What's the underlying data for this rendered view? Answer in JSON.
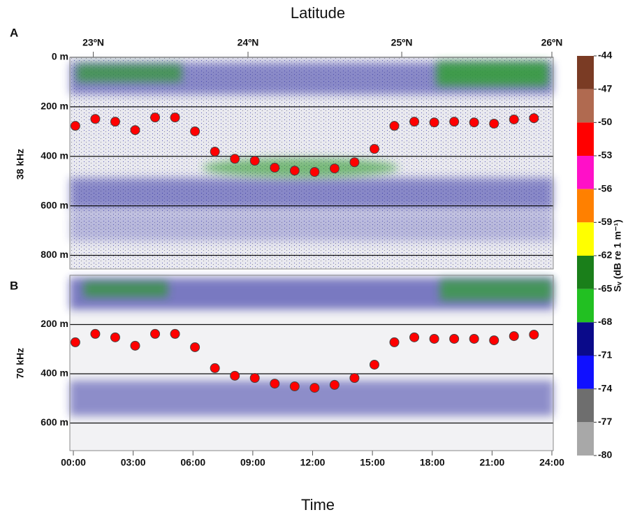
{
  "figure": {
    "top_axis_label": "Latitude",
    "x_label": "Time"
  },
  "colorbar": {
    "label": "Sᵥ (dB re 1 m⁻¹)",
    "ticks": [
      -44,
      -47,
      -50,
      -53,
      -56,
      -59,
      -62,
      -65,
      -68,
      -71,
      -74,
      -77,
      -80
    ],
    "colors": [
      "#7a3b24",
      "#b06a50",
      "#ff0000",
      "#ff10c8",
      "#ff8000",
      "#ffff00",
      "#1a7f1a",
      "#22c022",
      "#0a0a8a",
      "#1010ff",
      "#6e6e6e",
      "#a8a8a8"
    ]
  },
  "chart_data": [
    {
      "type": "scatter",
      "panel_label": "A",
      "y_label": "38 kHz",
      "color": "#ff0000",
      "x": [
        0.1,
        1.1,
        2.1,
        3.1,
        4.1,
        5.1,
        6.1,
        7.1,
        8.1,
        9.1,
        10.1,
        11.1,
        12.1,
        13.1,
        14.1,
        15.1,
        16.1,
        17.1,
        18.1,
        19.1,
        20.1,
        21.1,
        22.1,
        23.1
      ],
      "values": [
        277,
        249,
        260,
        294,
        243,
        243,
        299,
        381,
        410,
        418,
        446,
        458,
        463,
        449,
        424,
        370,
        277,
        260,
        263,
        260,
        263,
        268,
        251,
        246
      ],
      "xlim": [
        0,
        24
      ],
      "ylim": [
        0,
        855
      ],
      "y_inverted": true,
      "grid": true,
      "yticks": [
        {
          "value": 0,
          "label": "0 m"
        },
        {
          "value": 200,
          "label": "200 m"
        },
        {
          "value": 400,
          "label": "400 m"
        },
        {
          "value": 600,
          "label": "600 m"
        },
        {
          "value": 800,
          "label": "800 m"
        }
      ],
      "top_ticks": [
        {
          "value": 1.0,
          "label": "23ºN"
        },
        {
          "value": 8.76,
          "label": "24ºN"
        },
        {
          "value": 16.47,
          "label": "25ºN"
        },
        {
          "value": 24,
          "label": "26ºN"
        }
      ]
    },
    {
      "type": "scatter",
      "panel_label": "B",
      "y_label": "70 kHz",
      "color": "#ff0000",
      "x": [
        0.1,
        1.1,
        2.1,
        3.1,
        4.1,
        5.1,
        6.1,
        7.1,
        8.1,
        9.1,
        10.1,
        11.1,
        12.1,
        13.1,
        14.1,
        15.1,
        16.1,
        17.1,
        18.1,
        19.1,
        20.1,
        21.1,
        22.1,
        23.1
      ],
      "values": [
        272,
        238,
        252,
        286,
        238,
        238,
        292,
        377,
        408,
        417,
        440,
        451,
        457,
        445,
        417,
        363,
        272,
        252,
        258,
        258,
        258,
        264,
        247,
        241
      ],
      "xlim": [
        0,
        24
      ],
      "ylim": [
        0,
        712
      ],
      "y_inverted": true,
      "grid": true,
      "yticks": [
        {
          "value": 200,
          "label": "200 m"
        },
        {
          "value": 400,
          "label": "400 m"
        },
        {
          "value": 600,
          "label": "600 m"
        }
      ],
      "xticks": [
        {
          "value": 0,
          "label": "00:00"
        },
        {
          "value": 3,
          "label": "03:00"
        },
        {
          "value": 6,
          "label": "06:00"
        },
        {
          "value": 9,
          "label": "09:00"
        },
        {
          "value": 12,
          "label": "12:00"
        },
        {
          "value": 15,
          "label": "15:00"
        },
        {
          "value": 18,
          "label": "18:00"
        },
        {
          "value": 21,
          "label": "21:00"
        },
        {
          "value": 24,
          "label": "24:00"
        }
      ]
    }
  ]
}
